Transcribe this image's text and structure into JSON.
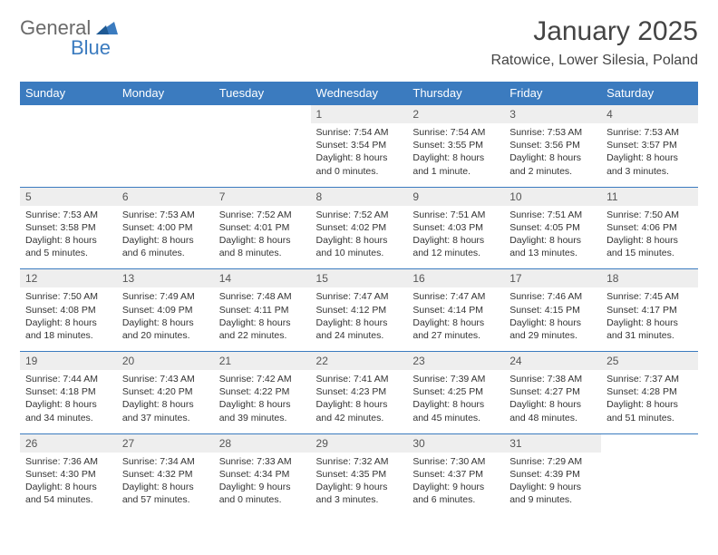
{
  "brand": {
    "part1": "General",
    "part2": "Blue"
  },
  "title": "January 2025",
  "location": "Ratowice, Lower Silesia, Poland",
  "colors": {
    "accent": "#3b7bbf",
    "header_bg": "#3b7bbf",
    "header_text": "#ffffff",
    "daynum_bg": "#eeeeee",
    "body_text": "#333333",
    "logo_gray": "#6a6a6a"
  },
  "weekdays": [
    "Sunday",
    "Monday",
    "Tuesday",
    "Wednesday",
    "Thursday",
    "Friday",
    "Saturday"
  ],
  "weeks": [
    [
      null,
      null,
      null,
      {
        "n": "1",
        "sr": "7:54 AM",
        "ss": "3:54 PM",
        "dl": "8 hours and 0 minutes."
      },
      {
        "n": "2",
        "sr": "7:54 AM",
        "ss": "3:55 PM",
        "dl": "8 hours and 1 minute."
      },
      {
        "n": "3",
        "sr": "7:53 AM",
        "ss": "3:56 PM",
        "dl": "8 hours and 2 minutes."
      },
      {
        "n": "4",
        "sr": "7:53 AM",
        "ss": "3:57 PM",
        "dl": "8 hours and 3 minutes."
      }
    ],
    [
      {
        "n": "5",
        "sr": "7:53 AM",
        "ss": "3:58 PM",
        "dl": "8 hours and 5 minutes."
      },
      {
        "n": "6",
        "sr": "7:53 AM",
        "ss": "4:00 PM",
        "dl": "8 hours and 6 minutes."
      },
      {
        "n": "7",
        "sr": "7:52 AM",
        "ss": "4:01 PM",
        "dl": "8 hours and 8 minutes."
      },
      {
        "n": "8",
        "sr": "7:52 AM",
        "ss": "4:02 PM",
        "dl": "8 hours and 10 minutes."
      },
      {
        "n": "9",
        "sr": "7:51 AM",
        "ss": "4:03 PM",
        "dl": "8 hours and 12 minutes."
      },
      {
        "n": "10",
        "sr": "7:51 AM",
        "ss": "4:05 PM",
        "dl": "8 hours and 13 minutes."
      },
      {
        "n": "11",
        "sr": "7:50 AM",
        "ss": "4:06 PM",
        "dl": "8 hours and 15 minutes."
      }
    ],
    [
      {
        "n": "12",
        "sr": "7:50 AM",
        "ss": "4:08 PM",
        "dl": "8 hours and 18 minutes."
      },
      {
        "n": "13",
        "sr": "7:49 AM",
        "ss": "4:09 PM",
        "dl": "8 hours and 20 minutes."
      },
      {
        "n": "14",
        "sr": "7:48 AM",
        "ss": "4:11 PM",
        "dl": "8 hours and 22 minutes."
      },
      {
        "n": "15",
        "sr": "7:47 AM",
        "ss": "4:12 PM",
        "dl": "8 hours and 24 minutes."
      },
      {
        "n": "16",
        "sr": "7:47 AM",
        "ss": "4:14 PM",
        "dl": "8 hours and 27 minutes."
      },
      {
        "n": "17",
        "sr": "7:46 AM",
        "ss": "4:15 PM",
        "dl": "8 hours and 29 minutes."
      },
      {
        "n": "18",
        "sr": "7:45 AM",
        "ss": "4:17 PM",
        "dl": "8 hours and 31 minutes."
      }
    ],
    [
      {
        "n": "19",
        "sr": "7:44 AM",
        "ss": "4:18 PM",
        "dl": "8 hours and 34 minutes."
      },
      {
        "n": "20",
        "sr": "7:43 AM",
        "ss": "4:20 PM",
        "dl": "8 hours and 37 minutes."
      },
      {
        "n": "21",
        "sr": "7:42 AM",
        "ss": "4:22 PM",
        "dl": "8 hours and 39 minutes."
      },
      {
        "n": "22",
        "sr": "7:41 AM",
        "ss": "4:23 PM",
        "dl": "8 hours and 42 minutes."
      },
      {
        "n": "23",
        "sr": "7:39 AM",
        "ss": "4:25 PM",
        "dl": "8 hours and 45 minutes."
      },
      {
        "n": "24",
        "sr": "7:38 AM",
        "ss": "4:27 PM",
        "dl": "8 hours and 48 minutes."
      },
      {
        "n": "25",
        "sr": "7:37 AM",
        "ss": "4:28 PM",
        "dl": "8 hours and 51 minutes."
      }
    ],
    [
      {
        "n": "26",
        "sr": "7:36 AM",
        "ss": "4:30 PM",
        "dl": "8 hours and 54 minutes."
      },
      {
        "n": "27",
        "sr": "7:34 AM",
        "ss": "4:32 PM",
        "dl": "8 hours and 57 minutes."
      },
      {
        "n": "28",
        "sr": "7:33 AM",
        "ss": "4:34 PM",
        "dl": "9 hours and 0 minutes."
      },
      {
        "n": "29",
        "sr": "7:32 AM",
        "ss": "4:35 PM",
        "dl": "9 hours and 3 minutes."
      },
      {
        "n": "30",
        "sr": "7:30 AM",
        "ss": "4:37 PM",
        "dl": "9 hours and 6 minutes."
      },
      {
        "n": "31",
        "sr": "7:29 AM",
        "ss": "4:39 PM",
        "dl": "9 hours and 9 minutes."
      },
      null
    ]
  ],
  "labels": {
    "sunrise": "Sunrise: ",
    "sunset": "Sunset: ",
    "daylight": "Daylight: "
  }
}
